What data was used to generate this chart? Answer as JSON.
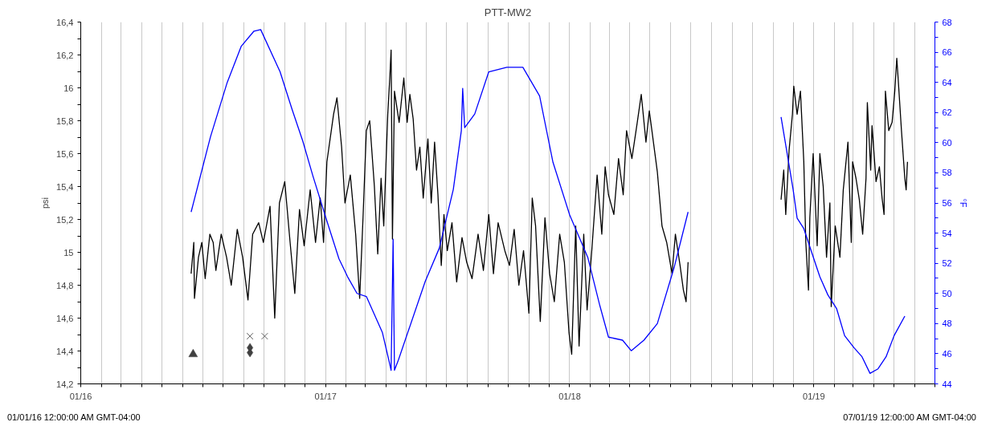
{
  "chart_data": {
    "type": "line",
    "title": "PTT-MW2",
    "ylabel": "psi",
    "y2label": "°F",
    "annotations": [
      "01/01/16 12:00:00 AM GMT-04:00",
      "07/01/19 12:00:00 AM GMT-04:00"
    ],
    "xlim": [
      "2016-01-01",
      "2019-07-01"
    ],
    "xticks": [
      {
        "value": "2016-01-01",
        "label": "01/16"
      },
      {
        "value": "2016-02-01",
        "label": null
      },
      {
        "value": "2016-03-01",
        "label": null
      },
      {
        "value": "2016-04-01",
        "label": null
      },
      {
        "value": "2016-05-01",
        "label": null
      },
      {
        "value": "2016-06-01",
        "label": null
      },
      {
        "value": "2016-07-01",
        "label": null
      },
      {
        "value": "2016-08-01",
        "label": null
      },
      {
        "value": "2016-09-01",
        "label": null
      },
      {
        "value": "2016-10-01",
        "label": null
      },
      {
        "value": "2016-11-01",
        "label": null
      },
      {
        "value": "2016-12-01",
        "label": null
      },
      {
        "value": "2017-01-01",
        "label": "01/17"
      },
      {
        "value": "2017-02-01",
        "label": null
      },
      {
        "value": "2017-03-01",
        "label": null
      },
      {
        "value": "2017-04-01",
        "label": null
      },
      {
        "value": "2017-05-01",
        "label": null
      },
      {
        "value": "2017-06-01",
        "label": null
      },
      {
        "value": "2017-07-01",
        "label": null
      },
      {
        "value": "2017-08-01",
        "label": null
      },
      {
        "value": "2017-09-01",
        "label": null
      },
      {
        "value": "2017-10-01",
        "label": null
      },
      {
        "value": "2017-11-01",
        "label": null
      },
      {
        "value": "2017-12-01",
        "label": null
      },
      {
        "value": "2018-01-01",
        "label": "01/18"
      },
      {
        "value": "2018-02-01",
        "label": null
      },
      {
        "value": "2018-03-01",
        "label": null
      },
      {
        "value": "2018-04-01",
        "label": null
      },
      {
        "value": "2018-05-01",
        "label": null
      },
      {
        "value": "2018-06-01",
        "label": null
      },
      {
        "value": "2018-07-01",
        "label": null
      },
      {
        "value": "2018-08-01",
        "label": null
      },
      {
        "value": "2018-09-01",
        "label": null
      },
      {
        "value": "2018-10-01",
        "label": null
      },
      {
        "value": "2018-11-01",
        "label": null
      },
      {
        "value": "2018-12-01",
        "label": null
      },
      {
        "value": "2019-01-01",
        "label": "01/19"
      },
      {
        "value": "2019-02-01",
        "label": null
      },
      {
        "value": "2019-03-01",
        "label": null
      },
      {
        "value": "2019-04-01",
        "label": null
      },
      {
        "value": "2019-05-01",
        "label": null
      },
      {
        "value": "2019-06-01",
        "label": null
      },
      {
        "value": "2019-07-01",
        "label": null
      }
    ],
    "ylim": [
      14.2,
      16.4
    ],
    "yticks": [
      {
        "value": 14.2,
        "label": "14,2"
      },
      {
        "value": 14.3,
        "label": null
      },
      {
        "value": 14.4,
        "label": "14,4"
      },
      {
        "value": 14.5,
        "label": null
      },
      {
        "value": 14.6,
        "label": "14,6"
      },
      {
        "value": 14.7,
        "label": null
      },
      {
        "value": 14.8,
        "label": "14,8"
      },
      {
        "value": 14.9,
        "label": null
      },
      15,
      {
        "value": 15.1,
        "label": null
      },
      {
        "value": 15.2,
        "label": "15,2"
      },
      {
        "value": 15.3,
        "label": null
      },
      {
        "value": 15.4,
        "label": "15,4"
      },
      {
        "value": 15.5,
        "label": null
      },
      {
        "value": 15.6,
        "label": "15,6"
      },
      {
        "value": 15.7,
        "label": null
      },
      {
        "value": 15.8,
        "label": "15,8"
      },
      {
        "value": 15.9,
        "label": null
      },
      16,
      {
        "value": 16.1,
        "label": null
      },
      {
        "value": 16.2,
        "label": "16,2"
      },
      {
        "value": 16.3,
        "label": null
      },
      {
        "value": 16.4,
        "label": "16,4"
      }
    ],
    "y2lim": [
      44,
      68
    ],
    "y2ticks": [
      44,
      {
        "value": 45,
        "label": null
      },
      46,
      {
        "value": 47,
        "label": null
      },
      48,
      {
        "value": 49,
        "label": null
      },
      50,
      {
        "value": 51,
        "label": null
      },
      52,
      {
        "value": 53,
        "label": null
      },
      54,
      {
        "value": 55,
        "label": null
      },
      56,
      {
        "value": 57,
        "label": null
      },
      58,
      {
        "value": 59,
        "label": null
      },
      60,
      {
        "value": 61,
        "label": null
      },
      62,
      {
        "value": 63,
        "label": null
      },
      64,
      {
        "value": 65,
        "label": null
      },
      66,
      {
        "value": 67,
        "label": null
      },
      68
    ],
    "grid": "x",
    "series": [
      {
        "color": "#000000",
        "x": [
          "2016-06-14",
          "2016-06-18",
          "2016-06-19",
          "2016-06-25",
          "2016-06-30",
          "2016-07-05",
          "2016-07-12",
          "2016-07-17",
          "2016-07-21",
          "2016-07-29",
          "2016-08-06",
          "2016-08-13",
          "2016-08-22",
          "2016-08-30",
          "2016-09-07",
          "2016-09-14",
          "2016-09-23",
          "2016-09-30",
          "2016-10-10",
          "2016-10-17",
          "2016-10-24",
          "2016-11-01",
          "2016-11-09",
          "2016-11-16",
          "2016-11-23",
          "2016-11-30",
          "2016-12-09",
          "2016-12-17",
          "2016-12-24",
          "2016-12-29",
          "2017-01-03",
          "2017-01-13",
          "2017-01-18",
          "2017-01-25",
          "2017-01-30",
          "2017-02-07",
          "2017-02-15",
          "2017-02-21",
          "2017-02-26",
          "2017-03-03",
          "2017-03-08",
          "2017-03-15",
          "2017-03-20",
          "2017-03-25",
          "2017-03-29",
          "2017-04-04",
          "2017-04-07",
          "2017-04-09",
          "2017-04-11",
          "2017-04-14",
          "2017-04-21",
          "2017-04-28",
          "2017-05-03",
          "2017-05-07",
          "2017-05-12",
          "2017-05-17",
          "2017-05-22",
          "2017-05-27",
          "2017-06-03",
          "2017-06-08",
          "2017-06-13",
          "2017-06-18",
          "2017-06-23",
          "2017-06-27",
          "2017-07-02",
          "2017-07-09",
          "2017-07-16",
          "2017-07-24",
          "2017-07-31",
          "2017-08-08",
          "2017-08-17",
          "2017-08-25",
          "2017-09-02",
          "2017-09-09",
          "2017-09-16",
          "2017-09-26",
          "2017-10-03",
          "2017-10-10",
          "2017-10-17",
          "2017-10-24",
          "2017-11-01",
          "2017-11-06",
          "2017-11-11",
          "2017-11-18",
          "2017-11-25",
          "2017-12-02",
          "2017-12-09",
          "2017-12-17",
          "2017-12-24",
          "2017-12-31",
          "2018-01-04",
          "2018-01-10",
          "2018-01-15",
          "2018-01-22",
          "2018-01-27",
          "2018-02-03",
          "2018-02-11",
          "2018-02-18",
          "2018-02-23",
          "2018-02-28",
          "2018-03-08",
          "2018-03-15",
          "2018-03-22",
          "2018-03-27",
          "2018-04-04",
          "2018-04-12",
          "2018-04-18",
          "2018-04-25",
          "2018-04-30",
          "2018-05-12",
          "2018-05-19",
          "2018-05-26",
          "2018-06-03",
          "2018-06-08",
          "2018-06-15",
          "2018-06-20",
          "2018-06-24",
          "2018-06-27",
          "2018-09-01",
          "2018-11-13",
          "2018-11-17",
          "2018-11-20",
          "2018-11-25",
          "2018-11-30",
          "2018-12-02",
          "2018-12-07",
          "2018-12-12",
          "2018-12-17",
          "2018-12-20",
          "2018-12-24",
          "2018-12-26",
          "2018-12-31",
          "2019-01-06",
          "2019-01-10",
          "2019-01-15",
          "2019-01-20",
          "2019-01-25",
          "2019-01-27",
          "2019-02-02",
          "2019-02-09",
          "2019-02-14",
          "2019-02-21",
          "2019-02-26",
          "2019-02-28",
          "2019-03-05",
          "2019-03-10",
          "2019-03-15",
          "2019-03-20",
          "2019-03-22",
          "2019-03-27",
          "2019-03-29",
          "2019-04-04",
          "2019-04-09",
          "2019-04-13",
          "2019-04-16",
          "2019-04-18",
          "2019-04-23",
          "2019-04-28",
          "2019-05-02",
          "2019-05-05",
          "2019-05-07",
          "2019-05-12",
          "2019-05-17",
          "2019-05-19",
          "2019-05-21"
        ],
        "values": [
          14.87,
          15.06,
          14.72,
          14.97,
          15.06,
          14.84,
          15.11,
          15.06,
          14.89,
          15.11,
          14.97,
          14.8,
          15.14,
          14.97,
          14.71,
          15.11,
          15.18,
          15.06,
          15.28,
          14.6,
          15.3,
          15.43,
          15.06,
          14.75,
          15.26,
          15.04,
          15.38,
          15.06,
          15.33,
          15.06,
          15.55,
          15.84,
          15.94,
          15.64,
          15.3,
          15.47,
          15.11,
          14.72,
          15.21,
          15.74,
          15.8,
          15.4,
          14.99,
          15.45,
          15.16,
          15.84,
          16.06,
          16.23,
          15.08,
          15.98,
          15.79,
          16.06,
          15.79,
          15.96,
          15.81,
          15.5,
          15.64,
          15.33,
          15.69,
          15.3,
          15.67,
          15.35,
          14.92,
          15.23,
          15.01,
          15.18,
          14.82,
          15.09,
          14.94,
          14.84,
          15.11,
          14.89,
          15.23,
          14.87,
          15.18,
          15.01,
          14.92,
          15.14,
          14.8,
          15.01,
          14.63,
          15.33,
          15.16,
          14.58,
          15.21,
          14.87,
          14.7,
          15.11,
          14.94,
          14.51,
          14.38,
          15.16,
          14.43,
          15.11,
          14.65,
          15.01,
          15.47,
          15.11,
          15.52,
          15.35,
          15.23,
          15.57,
          15.35,
          15.74,
          15.57,
          15.79,
          15.96,
          15.67,
          15.86,
          15.49,
          15.16,
          15.06,
          14.87,
          15.11,
          14.92,
          14.77,
          14.7,
          14.94,
          null,
          15.32,
          15.5,
          15.23,
          15.62,
          15.84,
          16.01,
          15.84,
          15.98,
          15.55,
          15.06,
          14.77,
          15.21,
          15.6,
          15.04,
          15.6,
          15.4,
          14.97,
          15.3,
          14.67,
          15.16,
          14.97,
          15.38,
          15.67,
          15.06,
          15.55,
          15.45,
          15.32,
          15.11,
          15.45,
          15.91,
          15.5,
          15.77,
          15.43,
          15.52,
          15.33,
          15.23,
          15.98,
          15.74,
          15.79,
          15.98,
          16.18,
          16.06,
          15.74,
          15.45,
          15.38,
          15.55
        ]
      },
      {
        "axis": "y2",
        "color": "#0000ff",
        "x": [
          "2016-06-14",
          "2016-07-13",
          "2016-08-07",
          "2016-08-28",
          "2016-09-16",
          "2016-09-26",
          "2016-10-25",
          "2016-11-12",
          "2016-11-28",
          "2016-12-13",
          "2017-01-03",
          "2017-01-21",
          "2017-02-03",
          "2017-02-17",
          "2017-03-03",
          "2017-03-27",
          "2017-04-06",
          "2017-04-09",
          "2017-04-12",
          "2017-04-14",
          "2017-04-20",
          "2017-05-30",
          "2017-06-20",
          "2017-07-11",
          "2017-07-23",
          "2017-07-25",
          "2017-07-28",
          "2017-08-12",
          "2017-09-02",
          "2017-09-29",
          "2017-10-23",
          "2017-11-17",
          "2017-12-07",
          "2018-01-01",
          "2018-01-28",
          "2018-02-15",
          "2018-02-28",
          "2018-03-21",
          "2018-04-03",
          "2018-04-22",
          "2018-05-12",
          "2018-06-06",
          "2018-06-27",
          "2018-09-01",
          "2018-11-13",
          "2018-11-19",
          "2018-12-01",
          "2018-12-07",
          "2018-12-17",
          "2019-01-10",
          "2019-01-22",
          "2019-02-04",
          "2019-02-16",
          "2019-03-02",
          "2019-03-14",
          "2019-03-26",
          "2019-04-07",
          "2019-04-19",
          "2019-05-01",
          "2019-05-17"
        ],
        "values": [
          55.4,
          60.4,
          64.0,
          66.4,
          67.4,
          67.5,
          64.7,
          62.2,
          60.1,
          57.8,
          54.8,
          52.3,
          51.1,
          50.0,
          49.8,
          47.4,
          45.5,
          44.9,
          53.6,
          44.9,
          45.6,
          50.8,
          53.0,
          56.9,
          60.8,
          63.6,
          61.0,
          61.9,
          64.7,
          65.0,
          65.0,
          63.1,
          58.7,
          55.2,
          52.4,
          49.2,
          47.1,
          46.9,
          46.2,
          46.9,
          48.0,
          51.7,
          55.4,
          null,
          61.7,
          60.1,
          56.9,
          55.0,
          54.3,
          51.1,
          49.9,
          49.0,
          47.2,
          46.4,
          45.8,
          44.7,
          45.0,
          45.8,
          47.2,
          48.5
        ]
      },
      {
        "type": "scatter",
        "marker": "triangle",
        "color": "#404040",
        "x": [
          "2016-06-17"
        ],
        "values": [
          14.38
        ]
      },
      {
        "type": "scatter",
        "marker": "cross",
        "color": "#606060",
        "x": [
          "2016-09-10",
          "2016-10-02"
        ],
        "values": [
          14.49,
          14.49
        ]
      },
      {
        "type": "scatter",
        "marker": "diamond",
        "color": "#404040",
        "x": [
          "2016-09-10",
          "2016-09-10"
        ],
        "values": [
          14.42,
          14.39
        ]
      }
    ]
  }
}
